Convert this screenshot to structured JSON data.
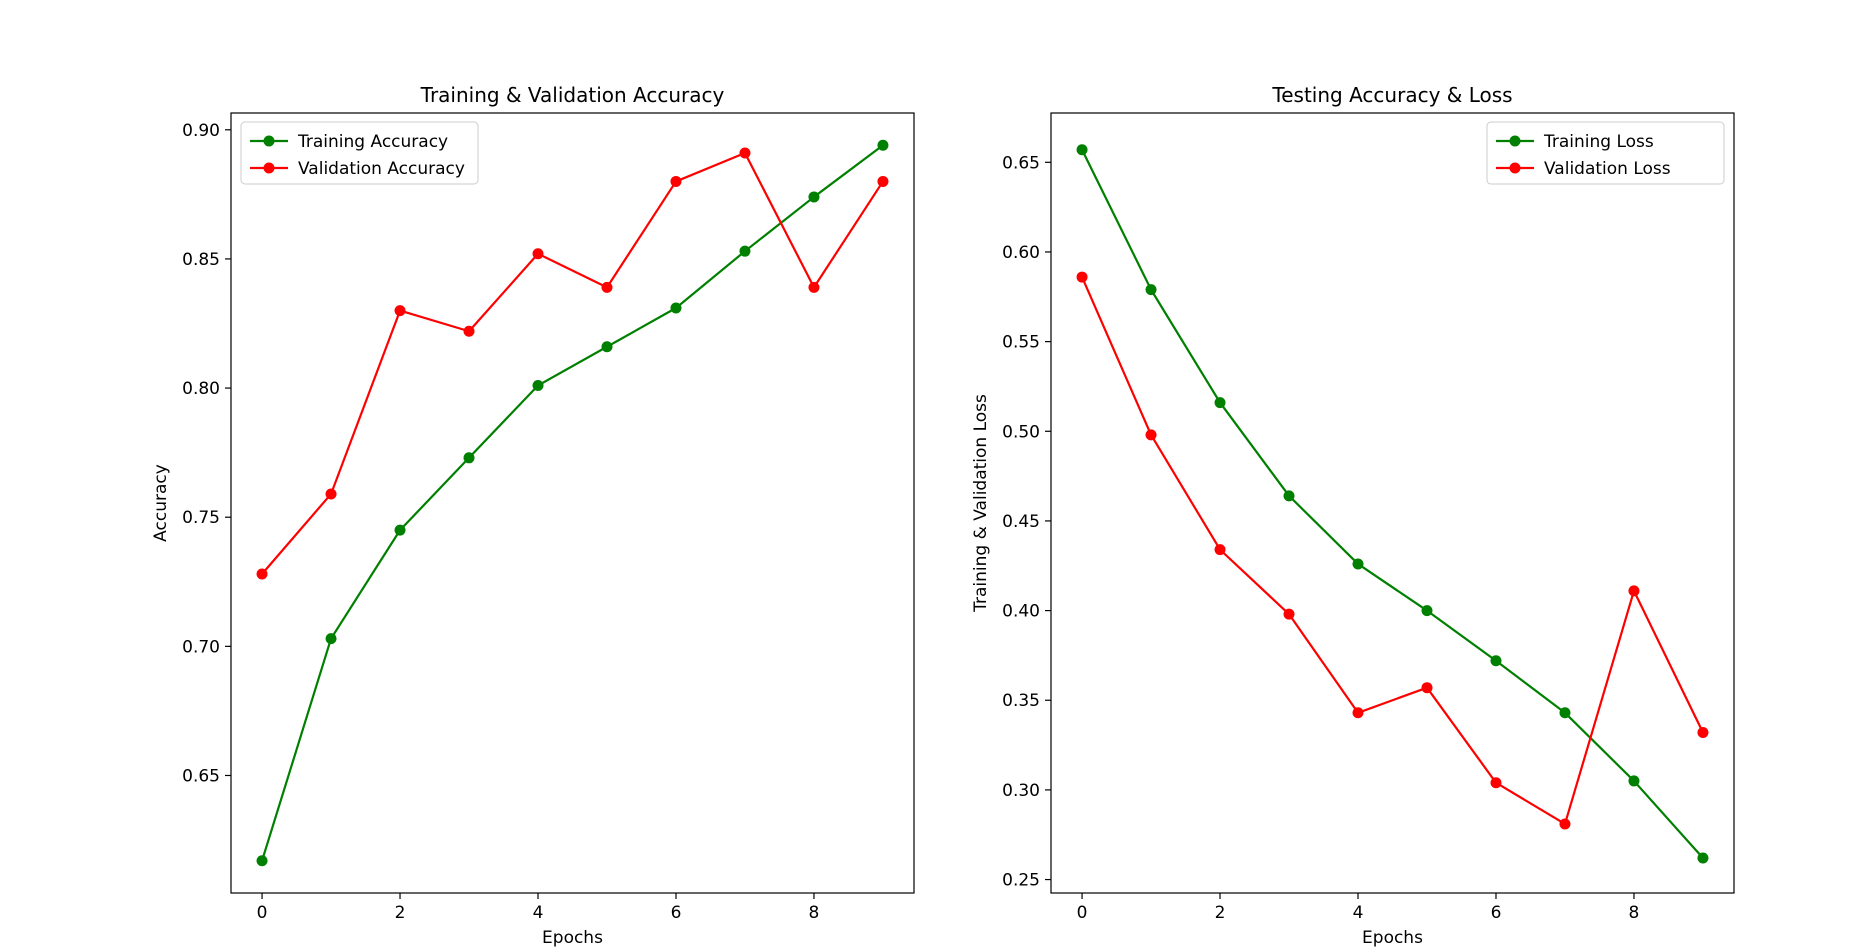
{
  "chart_data": [
    {
      "type": "line",
      "title": "Training & Validation Accuracy",
      "xlabel": "Epochs",
      "ylabel": "Accuracy",
      "xlim": [
        -0.45,
        9.45
      ],
      "ylim": [
        0.6045,
        0.9065
      ],
      "xticks": [
        0,
        2,
        4,
        6,
        8
      ],
      "xtick_labels": [
        "0",
        "2",
        "4",
        "6",
        "8"
      ],
      "yticks": [
        0.65,
        0.7,
        0.75,
        0.8,
        0.85,
        0.9
      ],
      "ytick_labels": [
        "0.65",
        "0.70",
        "0.75",
        "0.80",
        "0.85",
        "0.90"
      ],
      "grid": false,
      "legend_position": "upper-left",
      "x": [
        0,
        1,
        2,
        3,
        4,
        5,
        6,
        7,
        8,
        9
      ],
      "series": [
        {
          "name": "Training Accuracy",
          "color": "#008000",
          "values": [
            0.617,
            0.703,
            0.745,
            0.773,
            0.801,
            0.816,
            0.831,
            0.853,
            0.874,
            0.894
          ]
        },
        {
          "name": "Validation Accuracy",
          "color": "#ff0000",
          "values": [
            0.728,
            0.759,
            0.83,
            0.822,
            0.852,
            0.839,
            0.88,
            0.891,
            0.839,
            0.88
          ]
        }
      ]
    },
    {
      "type": "line",
      "title": "Testing Accuracy & Loss",
      "xlabel": "Epochs",
      "ylabel": "Training & Validation Loss",
      "xlim": [
        -0.45,
        9.45
      ],
      "ylim": [
        0.2425,
        0.6775
      ],
      "xticks": [
        0,
        2,
        4,
        6,
        8
      ],
      "xtick_labels": [
        "0",
        "2",
        "4",
        "6",
        "8"
      ],
      "yticks": [
        0.25,
        0.3,
        0.35,
        0.4,
        0.45,
        0.5,
        0.55,
        0.6,
        0.65
      ],
      "ytick_labels": [
        "0.25",
        "0.30",
        "0.35",
        "0.40",
        "0.45",
        "0.50",
        "0.55",
        "0.60",
        "0.65"
      ],
      "grid": false,
      "legend_position": "upper-right",
      "x": [
        0,
        1,
        2,
        3,
        4,
        5,
        6,
        7,
        8,
        9
      ],
      "series": [
        {
          "name": "Training Loss",
          "color": "#008000",
          "values": [
            0.657,
            0.579,
            0.516,
            0.464,
            0.426,
            0.4,
            0.372,
            0.343,
            0.305,
            0.262
          ]
        },
        {
          "name": "Validation Loss",
          "color": "#ff0000",
          "values": [
            0.586,
            0.498,
            0.434,
            0.398,
            0.343,
            0.357,
            0.304,
            0.281,
            0.411,
            0.332
          ]
        }
      ]
    }
  ]
}
